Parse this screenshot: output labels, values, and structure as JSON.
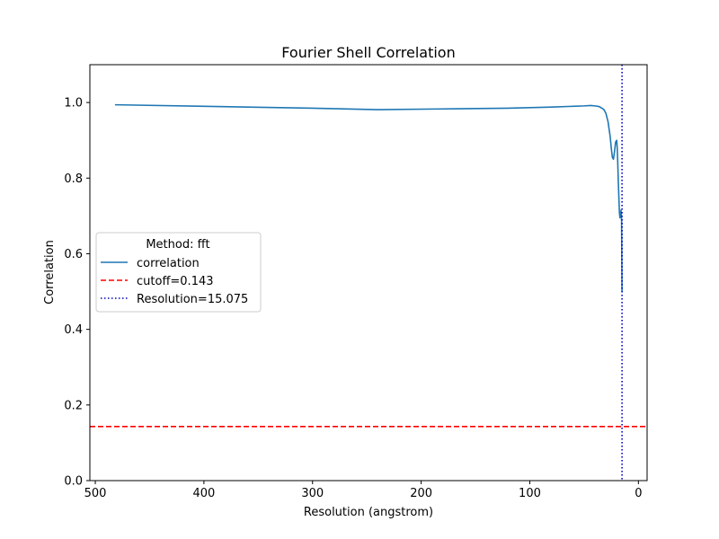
{
  "chart_data": {
    "type": "line",
    "title": "Fourier Shell Correlation",
    "xlabel": "Resolution (angstrom)",
    "ylabel": "Correlation",
    "xlim": [
      505,
      -8
    ],
    "ylim": [
      0,
      1.1
    ],
    "x_ticks": [
      500,
      400,
      300,
      200,
      100,
      0
    ],
    "y_ticks": [
      0.0,
      0.2,
      0.4,
      0.6,
      0.8,
      1.0
    ],
    "x_tick_labels": [
      "500",
      "400",
      "300",
      "200",
      "100",
      "0"
    ],
    "y_tick_labels": [
      "0.0",
      "0.2",
      "0.4",
      "0.6",
      "0.8",
      "1.0"
    ],
    "grid": false,
    "legend": {
      "title": "Method: fft",
      "placement": "center-left",
      "entries": [
        "correlation",
        "cutoff=0.143",
        "Resolution=15.075"
      ]
    },
    "series": [
      {
        "name": "correlation",
        "color": "#1f77b4",
        "style": "solid",
        "x": [
          481.9,
          400,
          300,
          240,
          180,
          120,
          80,
          60,
          50,
          44,
          40,
          36,
          32,
          30,
          28,
          26,
          25,
          24,
          23,
          22,
          21,
          20,
          19.5,
          19,
          18.5,
          18,
          17.5,
          17,
          16.5,
          16,
          15.5,
          15.3,
          15.1
        ],
        "y": [
          0.994,
          0.99,
          0.985,
          0.981,
          0.983,
          0.985,
          0.988,
          0.99,
          0.991,
          0.992,
          0.991,
          0.989,
          0.982,
          0.972,
          0.95,
          0.91,
          0.88,
          0.855,
          0.85,
          0.87,
          0.895,
          0.9,
          0.88,
          0.84,
          0.79,
          0.75,
          0.71,
          0.695,
          0.7,
          0.715,
          0.69,
          0.6,
          0.5
        ]
      }
    ],
    "reference_lines": [
      {
        "name": "cutoff=0.143",
        "orientation": "horizontal",
        "value": 0.143,
        "color": "#ff0000",
        "style": "dashed"
      },
      {
        "name": "Resolution=15.075",
        "orientation": "vertical",
        "value": 15.075,
        "color": "#0000bf",
        "style": "dotted"
      }
    ]
  }
}
